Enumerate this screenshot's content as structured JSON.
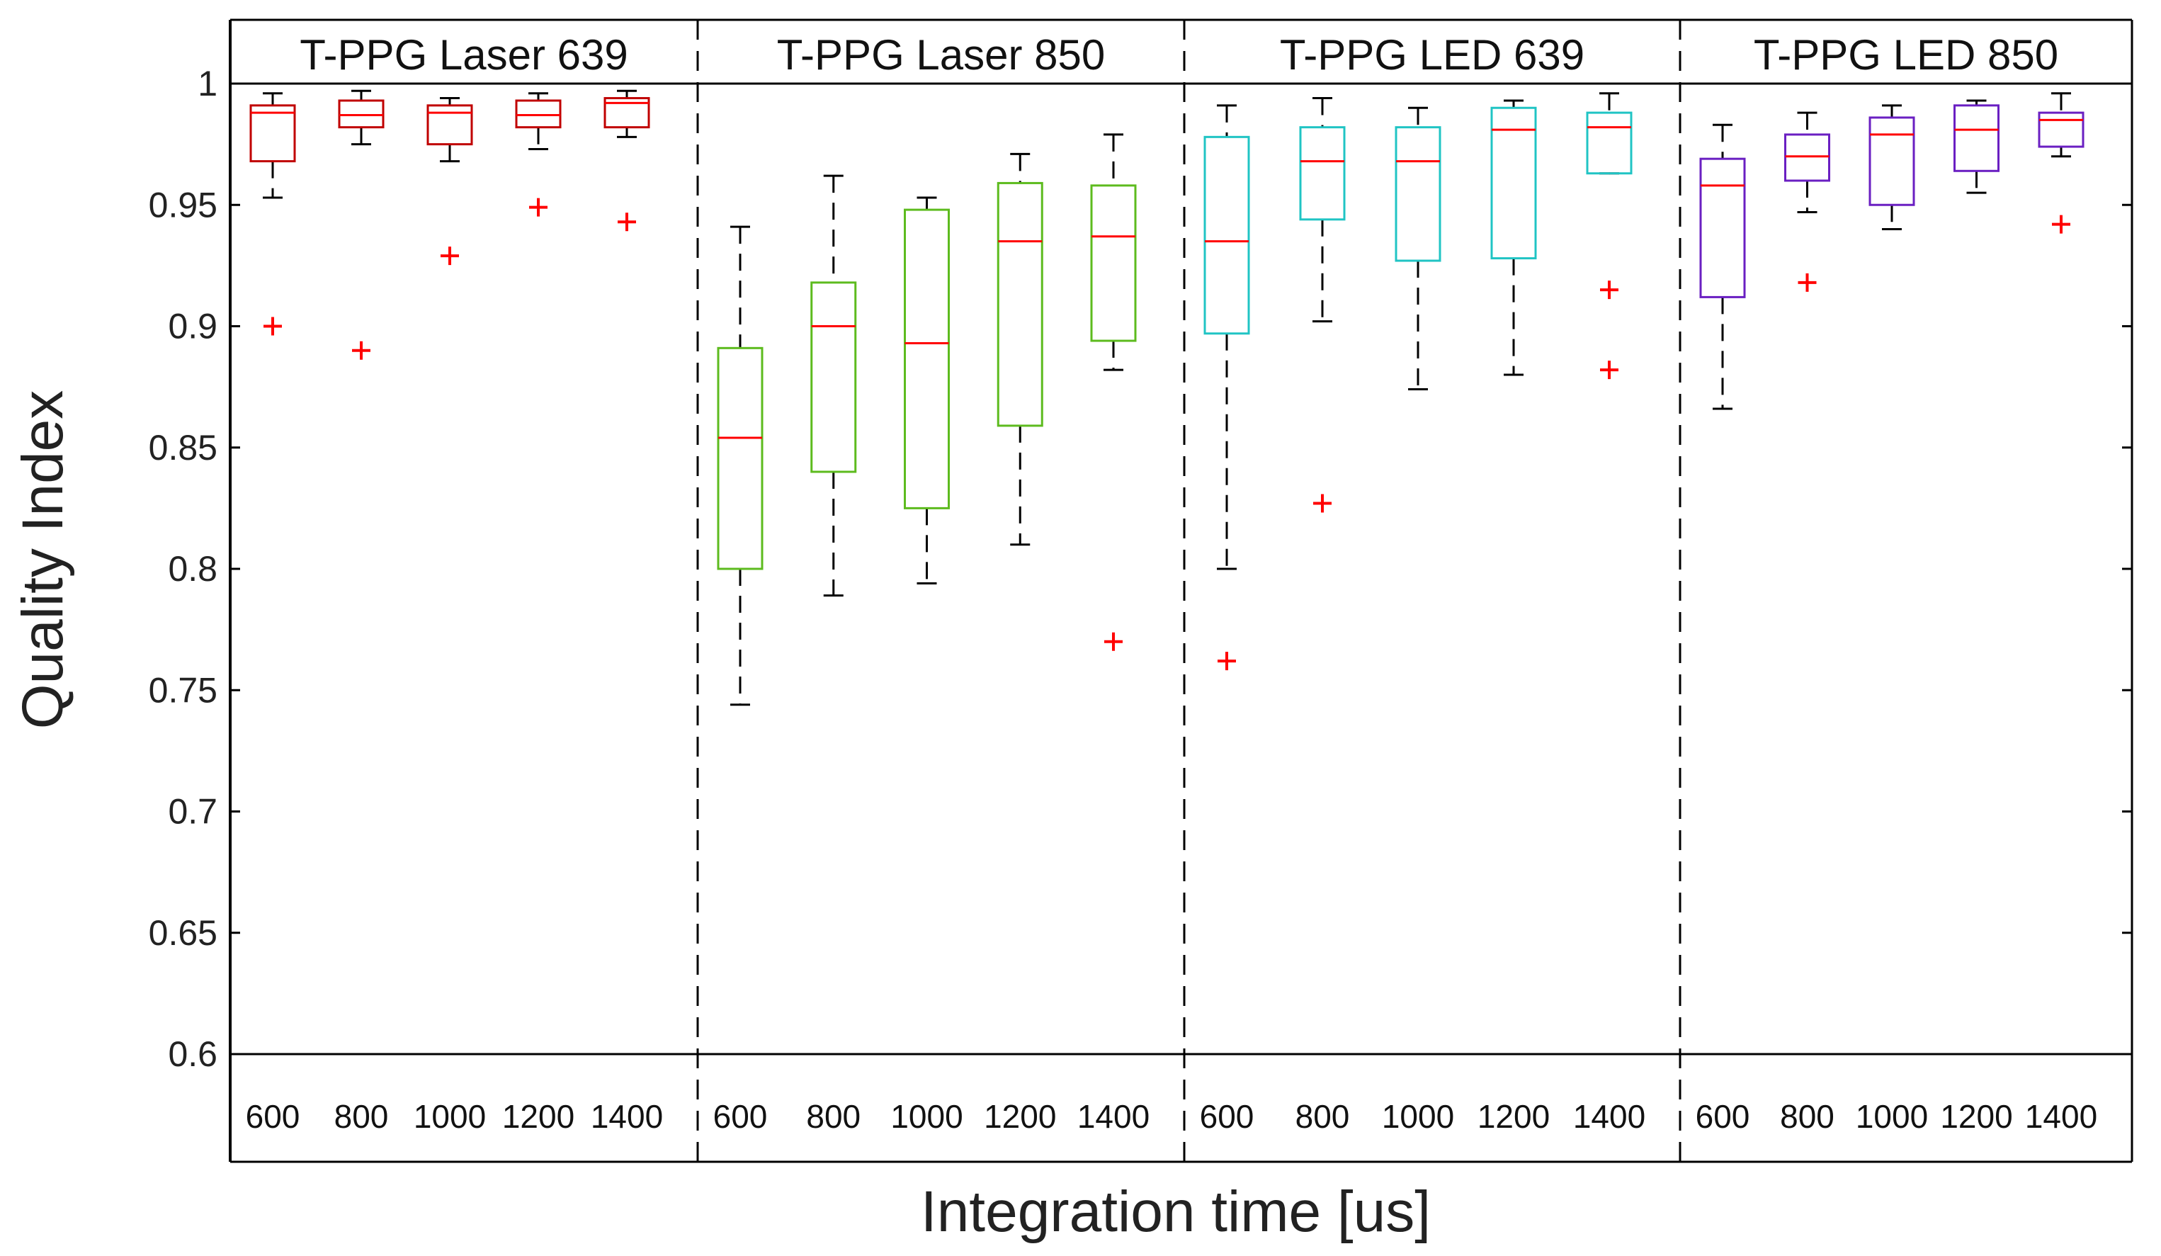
{
  "chart_data": {
    "type": "box",
    "ylabel": "Quality Index",
    "xlabel": "Integration time [us]",
    "ylim": [
      0.6,
      1.0
    ],
    "yticks": [
      1,
      0.95,
      0.9,
      0.85,
      0.8,
      0.75,
      0.7,
      0.65,
      0.6
    ],
    "ytick_labels": [
      "1",
      "0.95",
      "0.9",
      "0.85",
      "0.8",
      "0.75",
      "0.7",
      "0.65",
      "0.6"
    ],
    "categories": [
      "600",
      "800",
      "1000",
      "1200",
      "1400"
    ],
    "grid": false,
    "median_color": "#ff0000",
    "whisker_color": "#000000",
    "outlier_color": "#ff0000",
    "panels": [
      {
        "title": "T-PPG Laser 639",
        "color": "#c00000",
        "boxes": [
          {
            "x": "600",
            "q1": 0.968,
            "median": 0.988,
            "q3": 0.991,
            "whisker_low": 0.953,
            "whisker_high": 0.996,
            "outliers": [
              0.9
            ]
          },
          {
            "x": "800",
            "q1": 0.982,
            "median": 0.987,
            "q3": 0.993,
            "whisker_low": 0.975,
            "whisker_high": 0.997,
            "outliers": [
              0.89
            ]
          },
          {
            "x": "1000",
            "q1": 0.975,
            "median": 0.988,
            "q3": 0.991,
            "whisker_low": 0.968,
            "whisker_high": 0.994,
            "outliers": [
              0.929
            ]
          },
          {
            "x": "1200",
            "q1": 0.982,
            "median": 0.987,
            "q3": 0.993,
            "whisker_low": 0.973,
            "whisker_high": 0.996,
            "outliers": [
              0.949
            ]
          },
          {
            "x": "1400",
            "q1": 0.982,
            "median": 0.992,
            "q3": 0.994,
            "whisker_low": 0.978,
            "whisker_high": 0.997,
            "outliers": [
              0.943
            ]
          }
        ]
      },
      {
        "title": "T-PPG Laser 850",
        "color": "#5dbb1e",
        "boxes": [
          {
            "x": "600",
            "q1": 0.8,
            "median": 0.854,
            "q3": 0.891,
            "whisker_low": 0.744,
            "whisker_high": 0.941,
            "outliers": []
          },
          {
            "x": "800",
            "q1": 0.84,
            "median": 0.9,
            "q3": 0.918,
            "whisker_low": 0.789,
            "whisker_high": 0.962,
            "outliers": []
          },
          {
            "x": "1000",
            "q1": 0.825,
            "median": 0.893,
            "q3": 0.948,
            "whisker_low": 0.794,
            "whisker_high": 0.953,
            "outliers": []
          },
          {
            "x": "1200",
            "q1": 0.859,
            "median": 0.935,
            "q3": 0.959,
            "whisker_low": 0.81,
            "whisker_high": 0.971,
            "outliers": []
          },
          {
            "x": "1400",
            "q1": 0.894,
            "median": 0.937,
            "q3": 0.958,
            "whisker_low": 0.882,
            "whisker_high": 0.979,
            "outliers": [
              0.77
            ]
          }
        ]
      },
      {
        "title": "T-PPG LED 639",
        "color": "#20c4c4",
        "boxes": [
          {
            "x": "600",
            "q1": 0.897,
            "median": 0.935,
            "q3": 0.978,
            "whisker_low": 0.8,
            "whisker_high": 0.991,
            "outliers": [
              0.762
            ]
          },
          {
            "x": "800",
            "q1": 0.944,
            "median": 0.968,
            "q3": 0.982,
            "whisker_low": 0.902,
            "whisker_high": 0.994,
            "outliers": [
              0.827
            ]
          },
          {
            "x": "1000",
            "q1": 0.927,
            "median": 0.968,
            "q3": 0.982,
            "whisker_low": 0.874,
            "whisker_high": 0.99,
            "outliers": []
          },
          {
            "x": "1200",
            "q1": 0.928,
            "median": 0.981,
            "q3": 0.99,
            "whisker_low": 0.88,
            "whisker_high": 0.993,
            "outliers": []
          },
          {
            "x": "1400",
            "q1": 0.963,
            "median": 0.982,
            "q3": 0.988,
            "whisker_low": 0.963,
            "whisker_high": 0.996,
            "outliers": [
              0.915,
              0.882
            ]
          }
        ]
      },
      {
        "title": "T-PPG LED 850",
        "color": "#6a1fc2",
        "boxes": [
          {
            "x": "600",
            "q1": 0.912,
            "median": 0.958,
            "q3": 0.969,
            "whisker_low": 0.866,
            "whisker_high": 0.983,
            "outliers": []
          },
          {
            "x": "800",
            "q1": 0.96,
            "median": 0.97,
            "q3": 0.979,
            "whisker_low": 0.947,
            "whisker_high": 0.988,
            "outliers": [
              0.918
            ]
          },
          {
            "x": "1000",
            "q1": 0.95,
            "median": 0.979,
            "q3": 0.986,
            "whisker_low": 0.94,
            "whisker_high": 0.991,
            "outliers": []
          },
          {
            "x": "1200",
            "q1": 0.964,
            "median": 0.981,
            "q3": 0.991,
            "whisker_low": 0.955,
            "whisker_high": 0.993,
            "outliers": []
          },
          {
            "x": "1400",
            "q1": 0.974,
            "median": 0.985,
            "q3": 0.988,
            "whisker_low": 0.97,
            "whisker_high": 0.996,
            "outliers": [
              0.942
            ]
          }
        ]
      }
    ]
  }
}
